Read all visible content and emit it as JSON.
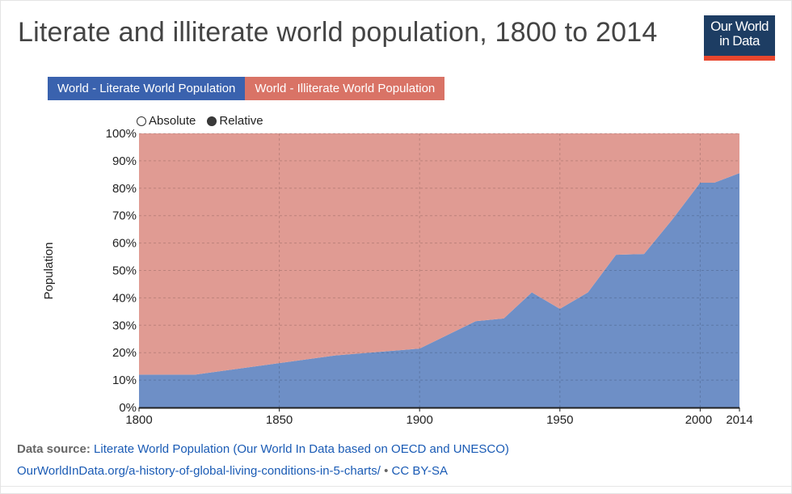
{
  "title": "Literate and illiterate world population, 1800 to 2014",
  "logo": {
    "line1": "Our World",
    "line2": "in Data"
  },
  "legend": [
    {
      "label": "World - Literate World Population",
      "color": "#3a62ae"
    },
    {
      "label": "World - Illiterate World Population",
      "color": "#d97366"
    }
  ],
  "modes": {
    "absolute": "Absolute",
    "relative": "Relative",
    "selected": "relative"
  },
  "source": {
    "prefix": "Data source:",
    "text": "Literate World Population (Our World In Data based on OECD and UNESCO)",
    "url": "OurWorldInData.org/a-history-of-global-living-conditions-in-5-charts/",
    "separator": "•",
    "license": "CC BY-SA"
  },
  "chart_data": {
    "type": "area",
    "stacked": true,
    "title": "Literate and illiterate world population, 1800 to 2014",
    "xlabel": "",
    "ylabel": "Population",
    "x": [
      1800,
      1820,
      1870,
      1900,
      1920,
      1930,
      1940,
      1950,
      1960,
      1970,
      1980,
      1990,
      2000,
      2005,
      2014
    ],
    "series": [
      {
        "name": "World - Literate World Population",
        "color": "#6e8fc6",
        "values": [
          12,
          12,
          19,
          21.5,
          31.5,
          32.5,
          42,
          36,
          42,
          55.7,
          56,
          68.5,
          82,
          82,
          85.5
        ]
      },
      {
        "name": "World - Illiterate World Population",
        "color": "#e09b93",
        "values": [
          88,
          88,
          81,
          78.5,
          68.5,
          67.5,
          58,
          64,
          58,
          44.3,
          44,
          31.5,
          18,
          18,
          14.5
        ]
      }
    ],
    "xlim": [
      1800,
      2014
    ],
    "ylim": [
      0,
      100
    ],
    "xticks": [
      1800,
      1850,
      1900,
      1950,
      2000,
      2014
    ],
    "yticks": [
      0,
      10,
      20,
      30,
      40,
      50,
      60,
      70,
      80,
      90,
      100
    ],
    "ytick_labels": [
      "0%",
      "10%",
      "20%",
      "30%",
      "40%",
      "50%",
      "60%",
      "70%",
      "80%",
      "90%",
      "100%"
    ],
    "grid": true
  }
}
